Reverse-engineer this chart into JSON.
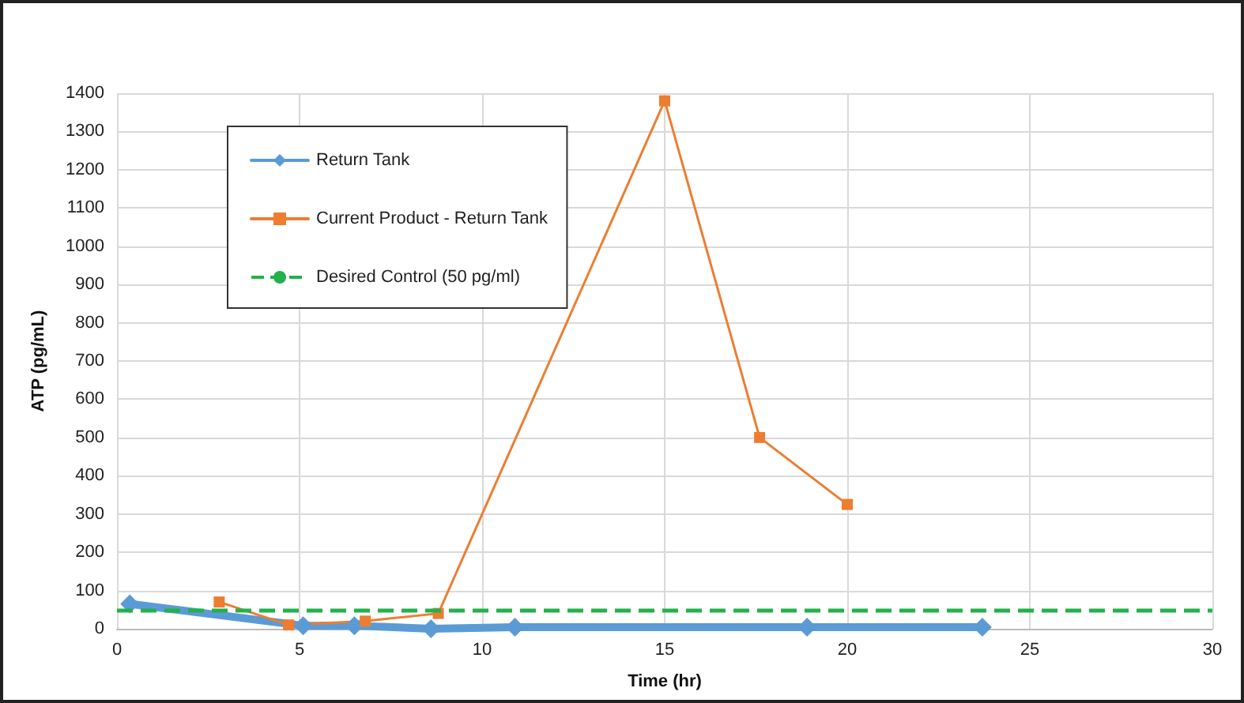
{
  "chart_data": {
    "type": "line",
    "xlabel": "Time (hr)",
    "ylabel": "ATP (pg/mL)",
    "series": [
      {
        "name": "Return Tank",
        "color": "#5b9bd5",
        "x": [
          0.35,
          5.1,
          6.5,
          8.6,
          10.9,
          18.9,
          23.7
        ],
        "values": [
          65,
          8,
          8,
          0,
          4,
          4,
          4
        ],
        "marker": "diamond"
      },
      {
        "name": "Current Product - Return Tank",
        "color": "#ed7d31",
        "x": [
          2.8,
          4.7,
          6.8,
          8.8,
          15,
          17.6,
          20
        ],
        "values": [
          70,
          10,
          20,
          40,
          1380,
          500,
          325
        ],
        "marker": "square"
      }
    ],
    "ref_lines": [
      {
        "axis": "y",
        "value": 50,
        "label": "Desired Control (50 pg/ml)",
        "color": "#22b14c",
        "line_style": "dashed"
      }
    ],
    "xlim": [
      0,
      30
    ],
    "xticks": [
      0,
      5,
      10,
      15,
      20,
      25,
      30
    ],
    "ylim": [
      0,
      1400
    ],
    "yticks": [
      0,
      100,
      200,
      300,
      400,
      500,
      600,
      700,
      800,
      900,
      1000,
      1100,
      1200,
      1300,
      1400
    ],
    "grid": true,
    "legend": "top left"
  }
}
